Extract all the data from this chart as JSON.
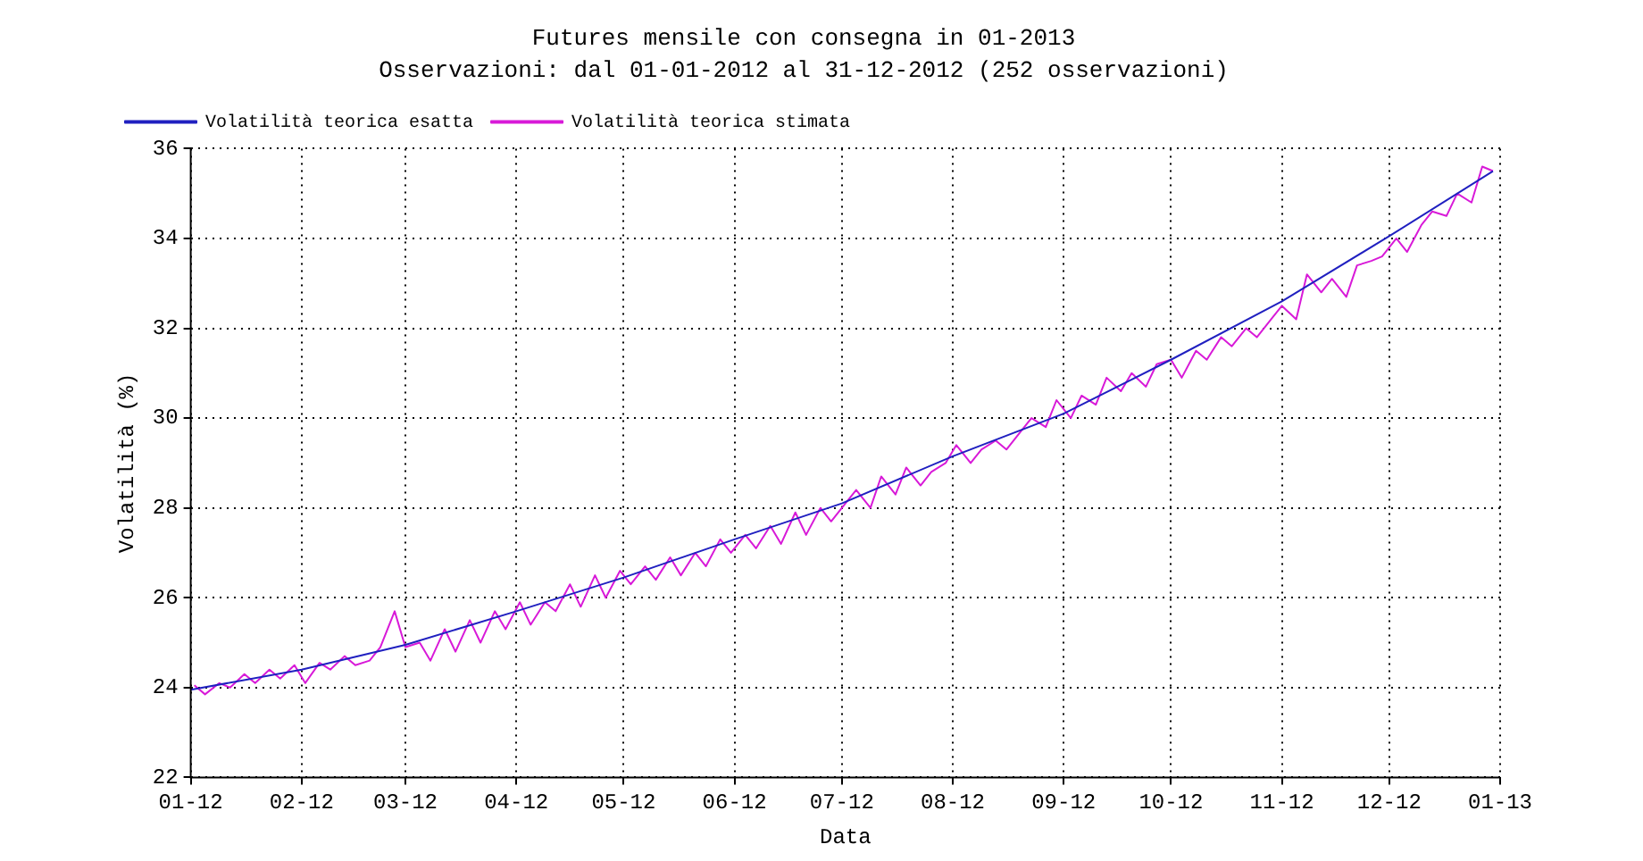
{
  "chart_data": {
    "type": "line",
    "title": "Futures mensile con consegna in 01-2013",
    "subtitle": "Osservazioni: dal 01-01-2012 al 31-12-2012 (252 osservazioni)",
    "xlabel": "Data",
    "ylabel": "Volatilità (%)",
    "xlim": [
      "2012-01",
      "2013-01"
    ],
    "xticks": [
      {
        "value": "2012-01",
        "label": "01-12"
      },
      {
        "value": "2012-02",
        "label": "02-12"
      },
      {
        "value": "2012-03",
        "label": "03-12"
      },
      {
        "value": "2012-04",
        "label": "04-12"
      },
      {
        "value": "2012-05",
        "label": "05-12"
      },
      {
        "value": "2012-06",
        "label": "06-12"
      },
      {
        "value": "2012-07",
        "label": "07-12"
      },
      {
        "value": "2012-08",
        "label": "08-12"
      },
      {
        "value": "2012-09",
        "label": "09-12"
      },
      {
        "value": "2012-10",
        "label": "10-12"
      },
      {
        "value": "2012-11",
        "label": "11-12"
      },
      {
        "value": "2012-12",
        "label": "12-12"
      },
      {
        "value": "2013-01",
        "label": "01-13"
      }
    ],
    "ylim": [
      22,
      36
    ],
    "yticks": [
      22,
      24,
      26,
      28,
      30,
      32,
      34,
      36
    ],
    "grid": true,
    "legend": "top left",
    "marker": "none",
    "line_style": "solid",
    "series": [
      {
        "name": "Volatilità teorica esatta",
        "color": "#2020c0",
        "x": [
          "2012-01-01",
          "2012-02-01",
          "2012-03-01",
          "2012-04-01",
          "2012-05-01",
          "2012-06-01",
          "2012-07-01",
          "2012-08-01",
          "2012-09-01",
          "2012-10-01",
          "2012-11-01",
          "2012-12-01",
          "2012-12-30"
        ],
        "values": [
          23.95,
          24.4,
          24.95,
          25.7,
          26.45,
          27.3,
          28.1,
          29.15,
          30.1,
          31.3,
          32.6,
          34.05,
          35.5
        ]
      },
      {
        "name": "Volatilità teorica stimata",
        "color": "#d81ad8",
        "x": [
          "2012-01-02",
          "2012-01-05",
          "2012-01-09",
          "2012-01-12",
          "2012-01-16",
          "2012-01-19",
          "2012-01-23",
          "2012-01-26",
          "2012-01-30",
          "2012-02-02",
          "2012-02-06",
          "2012-02-09",
          "2012-02-13",
          "2012-02-16",
          "2012-02-20",
          "2012-02-23",
          "2012-02-27",
          "2012-03-01",
          "2012-03-05",
          "2012-03-08",
          "2012-03-12",
          "2012-03-15",
          "2012-03-19",
          "2012-03-22",
          "2012-03-26",
          "2012-03-29",
          "2012-04-02",
          "2012-04-05",
          "2012-04-09",
          "2012-04-12",
          "2012-04-16",
          "2012-04-19",
          "2012-04-23",
          "2012-04-26",
          "2012-04-30",
          "2012-05-03",
          "2012-05-07",
          "2012-05-10",
          "2012-05-14",
          "2012-05-17",
          "2012-05-21",
          "2012-05-24",
          "2012-05-28",
          "2012-05-31",
          "2012-06-04",
          "2012-06-07",
          "2012-06-11",
          "2012-06-14",
          "2012-06-18",
          "2012-06-21",
          "2012-06-25",
          "2012-06-28",
          "2012-07-02",
          "2012-07-05",
          "2012-07-09",
          "2012-07-12",
          "2012-07-16",
          "2012-07-19",
          "2012-07-23",
          "2012-07-26",
          "2012-07-30",
          "2012-08-02",
          "2012-08-06",
          "2012-08-09",
          "2012-08-13",
          "2012-08-16",
          "2012-08-20",
          "2012-08-23",
          "2012-08-27",
          "2012-08-30",
          "2012-09-03",
          "2012-09-06",
          "2012-09-10",
          "2012-09-13",
          "2012-09-17",
          "2012-09-20",
          "2012-09-24",
          "2012-09-27",
          "2012-10-01",
          "2012-10-04",
          "2012-10-08",
          "2012-10-11",
          "2012-10-15",
          "2012-10-18",
          "2012-10-22",
          "2012-10-25",
          "2012-10-29",
          "2012-11-01",
          "2012-11-05",
          "2012-11-08",
          "2012-11-12",
          "2012-11-15",
          "2012-11-19",
          "2012-11-22",
          "2012-11-26",
          "2012-11-29",
          "2012-12-03",
          "2012-12-06",
          "2012-12-10",
          "2012-12-13",
          "2012-12-17",
          "2012-12-20",
          "2012-12-24",
          "2012-12-27",
          "2012-12-30"
        ],
        "values": [
          24.05,
          23.85,
          24.1,
          24.0,
          24.3,
          24.1,
          24.4,
          24.2,
          24.5,
          24.1,
          24.55,
          24.4,
          24.7,
          24.5,
          24.6,
          24.9,
          25.7,
          24.9,
          25.0,
          24.6,
          25.3,
          24.8,
          25.5,
          25.0,
          25.7,
          25.3,
          25.9,
          25.4,
          25.9,
          25.7,
          26.3,
          25.8,
          26.5,
          26.0,
          26.6,
          26.3,
          26.7,
          26.4,
          26.9,
          26.5,
          27.0,
          26.7,
          27.3,
          27.0,
          27.4,
          27.1,
          27.6,
          27.2,
          27.9,
          27.4,
          28.0,
          27.7,
          28.1,
          28.4,
          28.0,
          28.7,
          28.3,
          28.9,
          28.5,
          28.8,
          29.0,
          29.4,
          29.0,
          29.3,
          29.5,
          29.3,
          29.7,
          30.0,
          29.8,
          30.4,
          30.0,
          30.5,
          30.3,
          30.9,
          30.6,
          31.0,
          30.7,
          31.2,
          31.3,
          30.9,
          31.5,
          31.3,
          31.8,
          31.6,
          32.0,
          31.8,
          32.2,
          32.5,
          32.2,
          33.2,
          32.8,
          33.1,
          32.7,
          33.4,
          33.5,
          33.6,
          34.0,
          33.7,
          34.3,
          34.6,
          34.5,
          35.0,
          34.8,
          35.6,
          35.5
        ]
      }
    ]
  }
}
